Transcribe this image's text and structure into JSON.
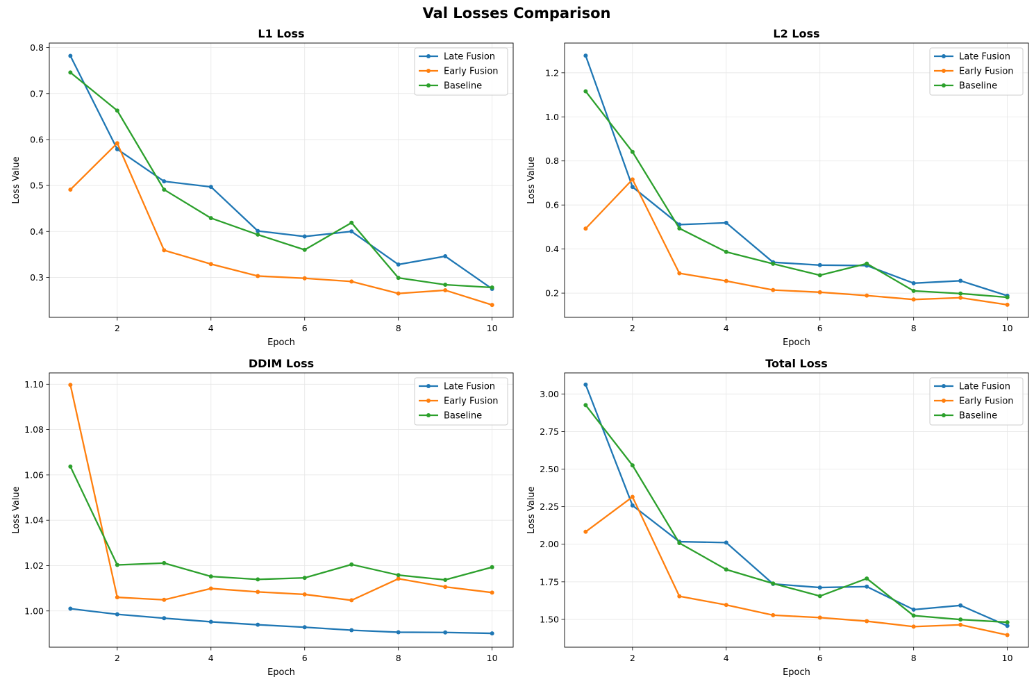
{
  "figure": {
    "title": "Val Losses Comparison",
    "colors": {
      "grid": "#e6e6e6",
      "axes": "#000000",
      "legend_border": "#cccccc"
    }
  },
  "chart_data": [
    {
      "type": "line",
      "title": "L1 Loss",
      "xlabel": "Epoch",
      "ylabel": "Loss Value",
      "x": [
        1,
        2,
        3,
        4,
        5,
        6,
        7,
        8,
        9,
        10
      ],
      "xticks": [
        2,
        4,
        6,
        8,
        10
      ],
      "xtick_labels": [
        "2",
        "4",
        "6",
        "8",
        "10"
      ],
      "yticks": [
        0.3,
        0.4,
        0.5,
        0.6,
        0.7,
        0.8
      ],
      "ytick_labels": [
        "0.3",
        "0.4",
        "0.5",
        "0.6",
        "0.7",
        "0.8"
      ],
      "xlim": [
        0.55,
        10.45
      ],
      "ylim": [
        0.213,
        0.81
      ],
      "grid": true,
      "legend": "top-right",
      "series": [
        {
          "name": "Late Fusion",
          "color": "#1f77b4",
          "values": [
            0.782,
            0.579,
            0.509,
            0.497,
            0.401,
            0.389,
            0.4,
            0.328,
            0.346,
            0.275
          ]
        },
        {
          "name": "Early Fusion",
          "color": "#ff7f0e",
          "values": [
            0.491,
            0.592,
            0.359,
            0.329,
            0.303,
            0.298,
            0.291,
            0.265,
            0.272,
            0.24
          ]
        },
        {
          "name": "Baseline",
          "color": "#2ca02c",
          "values": [
            0.746,
            0.663,
            0.491,
            0.429,
            0.393,
            0.36,
            0.419,
            0.299,
            0.284,
            0.278
          ]
        }
      ]
    },
    {
      "type": "line",
      "title": "L2 Loss",
      "xlabel": "Epoch",
      "ylabel": "Loss Value",
      "x": [
        1,
        2,
        3,
        4,
        5,
        6,
        7,
        8,
        9,
        10
      ],
      "xticks": [
        2,
        4,
        6,
        8,
        10
      ],
      "xtick_labels": [
        "2",
        "4",
        "6",
        "8",
        "10"
      ],
      "yticks": [
        0.2,
        0.4,
        0.6,
        0.8,
        1.0,
        1.2
      ],
      "ytick_labels": [
        "0.2",
        "0.4",
        "0.6",
        "0.8",
        "1.0",
        "1.2"
      ],
      "xlim": [
        0.55,
        10.45
      ],
      "ylim": [
        0.09,
        1.335
      ],
      "grid": true,
      "legend": "top-right",
      "series": [
        {
          "name": "Late Fusion",
          "color": "#1f77b4",
          "values": [
            1.278,
            0.682,
            0.511,
            0.519,
            0.34,
            0.327,
            0.325,
            0.245,
            0.256,
            0.188
          ]
        },
        {
          "name": "Early Fusion",
          "color": "#ff7f0e",
          "values": [
            0.493,
            0.716,
            0.29,
            0.255,
            0.214,
            0.204,
            0.189,
            0.171,
            0.179,
            0.147
          ]
        },
        {
          "name": "Baseline",
          "color": "#2ca02c",
          "values": [
            1.116,
            0.841,
            0.494,
            0.387,
            0.333,
            0.281,
            0.334,
            0.21,
            0.198,
            0.181
          ]
        }
      ]
    },
    {
      "type": "line",
      "title": "DDIM Loss",
      "xlabel": "Epoch",
      "ylabel": "Loss Value",
      "x": [
        1,
        2,
        3,
        4,
        5,
        6,
        7,
        8,
        9,
        10
      ],
      "xticks": [
        2,
        4,
        6,
        8,
        10
      ],
      "xtick_labels": [
        "2",
        "4",
        "6",
        "8",
        "10"
      ],
      "yticks": [
        1.0,
        1.02,
        1.04,
        1.06,
        1.08,
        1.1
      ],
      "ytick_labels": [
        "1.00",
        "1.02",
        "1.04",
        "1.06",
        "1.08",
        "1.10"
      ],
      "xlim": [
        0.55,
        10.45
      ],
      "ylim": [
        0.984,
        1.105
      ],
      "grid": true,
      "legend": "top-right",
      "series": [
        {
          "name": "Late Fusion",
          "color": "#1f77b4",
          "values": [
            1.001,
            0.9985,
            0.9968,
            0.9952,
            0.9939,
            0.9928,
            0.9915,
            0.9906,
            0.9905,
            0.9901
          ]
        },
        {
          "name": "Early Fusion",
          "color": "#ff7f0e",
          "values": [
            1.0997,
            1.006,
            1.0049,
            1.0099,
            1.0084,
            1.0073,
            1.0047,
            1.0142,
            1.0106,
            1.0081
          ]
        },
        {
          "name": "Baseline",
          "color": "#2ca02c",
          "values": [
            1.0637,
            1.0203,
            1.0211,
            1.0152,
            1.0139,
            1.0146,
            1.0205,
            1.0158,
            1.0137,
            1.0193
          ]
        }
      ]
    },
    {
      "type": "line",
      "title": "Total Loss",
      "xlabel": "Epoch",
      "ylabel": "Loss Value",
      "x": [
        1,
        2,
        3,
        4,
        5,
        6,
        7,
        8,
        9,
        10
      ],
      "xticks": [
        2,
        4,
        6,
        8,
        10
      ],
      "xtick_labels": [
        "2",
        "4",
        "6",
        "8",
        "10"
      ],
      "yticks": [
        1.5,
        1.75,
        2.0,
        2.25,
        2.5,
        2.75,
        3.0
      ],
      "ytick_labels": [
        "1.50",
        "1.75",
        "2.00",
        "2.25",
        "2.50",
        "2.75",
        "3.00"
      ],
      "xlim": [
        0.55,
        10.45
      ],
      "ylim": [
        1.315,
        3.14
      ],
      "grid": true,
      "legend": "top-right",
      "series": [
        {
          "name": "Late Fusion",
          "color": "#1f77b4",
          "values": [
            3.062,
            2.258,
            2.017,
            2.011,
            1.736,
            1.712,
            1.718,
            1.565,
            1.593,
            1.457
          ]
        },
        {
          "name": "Early Fusion",
          "color": "#ff7f0e",
          "values": [
            2.083,
            2.315,
            1.654,
            1.596,
            1.528,
            1.512,
            1.488,
            1.452,
            1.464,
            1.396
          ]
        },
        {
          "name": "Baseline",
          "color": "#2ca02c",
          "values": [
            2.926,
            2.525,
            2.008,
            1.832,
            1.739,
            1.655,
            1.772,
            1.525,
            1.499,
            1.481
          ]
        }
      ]
    }
  ]
}
